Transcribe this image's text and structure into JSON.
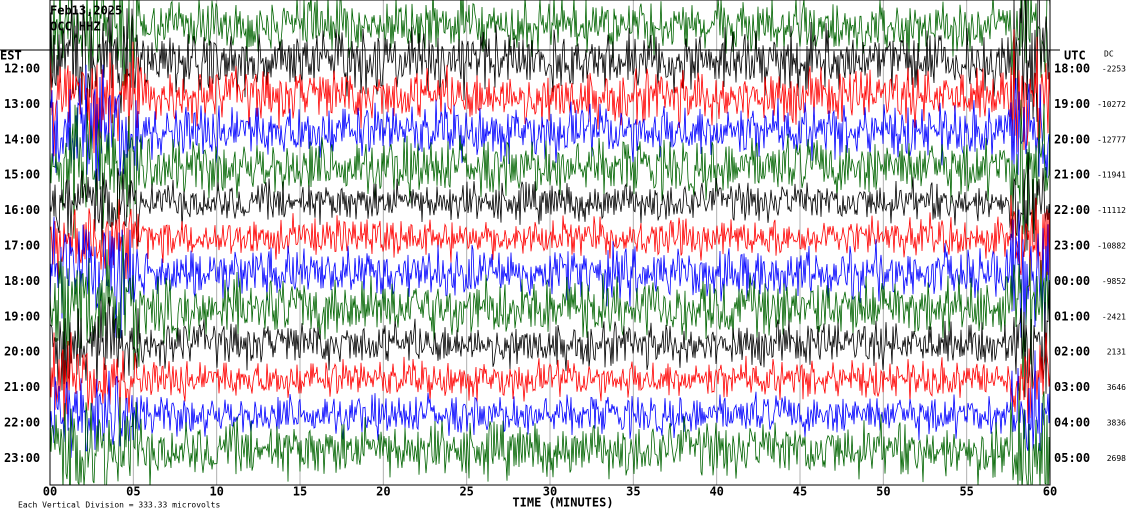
{
  "header": {
    "date": "Feb13,2025",
    "station": "OCC HHZ"
  },
  "left_axis": {
    "title": "EST",
    "labels": [
      "12:00",
      "13:00",
      "14:00",
      "15:00",
      "16:00",
      "17:00",
      "18:00",
      "19:00",
      "20:00",
      "21:00",
      "22:00",
      "23:00"
    ]
  },
  "right_axis": {
    "title": "UTC",
    "labels": [
      "18:00",
      "19:00",
      "20:00",
      "21:00",
      "22:00",
      "23:00",
      "00:00",
      "01:00",
      "02:00",
      "03:00",
      "04:00",
      "05:00"
    ]
  },
  "dc": {
    "title": "DC",
    "values": [
      "-2253",
      "-10272",
      "-12777",
      "-11941",
      "-11112",
      "-10882",
      "-9852",
      "-2421",
      "2131",
      "3646",
      "3836",
      "2698"
    ]
  },
  "x_axis": {
    "title": "TIME (MINUTES)",
    "ticks": [
      "00",
      "05",
      "10",
      "15",
      "20",
      "25",
      "30",
      "35",
      "40",
      "45",
      "50",
      "55",
      "60"
    ]
  },
  "footer": "Each Vertical Division =  333.33 microvolts",
  "trace_colors": [
    "#000000",
    "#ff0000",
    "#0000ff",
    "#006400"
  ]
}
